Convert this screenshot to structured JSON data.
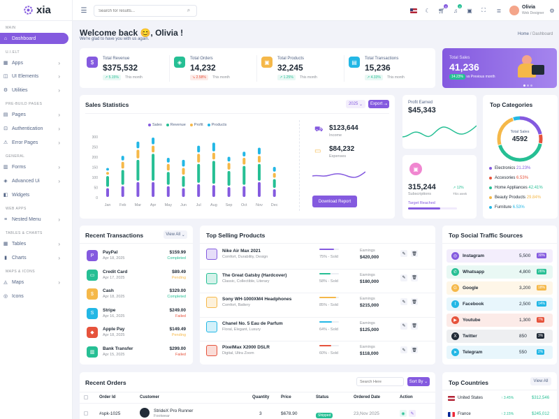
{
  "app": {
    "name": "xia"
  },
  "sidebar": {
    "sections": [
      "MAIN",
      "U.I.ELT",
      "PRE-BUILD PAGES",
      "GENERAL",
      "WEB APPS",
      "TABLES & CHARTS",
      "MAPS & ICONS"
    ],
    "items": [
      {
        "label": "Dashboard",
        "icon": "home-icon"
      },
      {
        "label": "Apps",
        "icon": "grid-icon"
      },
      {
        "label": "UI Elements",
        "icon": "layers-icon"
      },
      {
        "label": "Utilities",
        "icon": "tool-icon"
      },
      {
        "label": "Pages",
        "icon": "page-icon"
      },
      {
        "label": "Authentication",
        "icon": "lock-icon"
      },
      {
        "label": "Error Pages",
        "icon": "error-icon"
      },
      {
        "label": "Forms",
        "icon": "form-icon"
      },
      {
        "label": "Advanced Ui",
        "icon": "advanced-icon"
      },
      {
        "label": "Widgets",
        "icon": "widget-icon"
      },
      {
        "label": "Nested Menu",
        "icon": "nested-icon"
      },
      {
        "label": "Tables",
        "icon": "table-icon"
      },
      {
        "label": "Charts",
        "icon": "chart-icon"
      },
      {
        "label": "Maps",
        "icon": "map-icon"
      },
      {
        "label": "Icons",
        "icon": "icons-icon"
      }
    ]
  },
  "header": {
    "search_placeholder": "Search for results...",
    "user_name": "Olivia",
    "user_role": "Web Designer",
    "cart_badge": "4",
    "notif_badge": "4"
  },
  "welcome": {
    "title": "Welcome back 😊, Olivia !",
    "subtitle": "We're glad to have you with us again.",
    "crumb_home": "Home",
    "crumb_sep": "/",
    "crumb_current": "Dashboard"
  },
  "stats": [
    {
      "label": "Total Revenue",
      "value": "$375,532",
      "change": "5.15%",
      "period": "This month",
      "trend": "up",
      "color": "#845adf"
    },
    {
      "label": "Total Orders",
      "value": "14,232",
      "change": "2.58%",
      "period": "This month",
      "trend": "down",
      "color": "#26bf94"
    },
    {
      "label": "Total Products",
      "value": "32,245",
      "change": "1.25%",
      "period": "This month",
      "trend": "up",
      "color": "#f5b849"
    },
    {
      "label": "Total Transactions",
      "value": "15,236",
      "change": "4.33%",
      "period": "This month",
      "trend": "up",
      "color": "#23b7e5"
    }
  ],
  "total_sales": {
    "label": "Total Sales",
    "value": "41,236",
    "change": "14.23%",
    "note": "vs Previous month"
  },
  "sales_stats": {
    "title": "Sales Statistics",
    "year": "2025",
    "export": "Export",
    "income_value": "$123,644",
    "income_label": "Income",
    "expense_value": "$84,232",
    "expense_label": "Expenses",
    "download": "Download Report"
  },
  "chart_data": {
    "type": "bar",
    "categories": [
      "Jan",
      "Feb",
      "Mar",
      "Apr",
      "May",
      "Jun",
      "Jul",
      "Aug",
      "Sep",
      "Oct",
      "Nov",
      "Dec"
    ],
    "yticks": [
      "300",
      "250",
      "200",
      "150",
      "100",
      "50",
      "0"
    ],
    "ylim": [
      0,
      300
    ],
    "legend": [
      "Sales",
      "Revenue",
      "Profit",
      "Products"
    ],
    "colors": [
      "#845adf",
      "#26bf94",
      "#f5b849",
      "#23b7e5"
    ],
    "series": [
      {
        "name": "Sales",
        "values": [
          50,
          60,
          80,
          80,
          60,
          50,
          70,
          65,
          55,
          60,
          80,
          45
        ]
      },
      {
        "name": "Revenue",
        "values": [
          60,
          80,
          110,
          140,
          70,
          60,
          100,
          120,
          80,
          100,
          90,
          50
        ]
      },
      {
        "name": "Profit",
        "values": [
          20,
          40,
          50,
          40,
          40,
          40,
          50,
          40,
          40,
          40,
          40,
          30
        ]
      },
      {
        "name": "Products",
        "values": [
          20,
          30,
          40,
          40,
          30,
          40,
          40,
          50,
          30,
          30,
          40,
          30
        ]
      }
    ]
  },
  "profit": {
    "label": "Profit Earned",
    "value": "$45,343"
  },
  "subs": {
    "value": "315,244",
    "label": "Subscriptions",
    "change": "12%",
    "period": "This week",
    "target": "Target Reached"
  },
  "categories": {
    "title": "Top Categories",
    "center_label": "Total Sales",
    "center_value": "4592",
    "items": [
      {
        "name": "Electronics",
        "pct": "21.23%",
        "color": "#845adf"
      },
      {
        "name": "Accesories",
        "pct": "6.53%",
        "color": "#e6533c"
      },
      {
        "name": "Home Appliances",
        "pct": "42.41%",
        "color": "#26bf94"
      },
      {
        "name": "Beauty Products",
        "pct": "29.84%",
        "color": "#f5b849"
      },
      {
        "name": "Furniture",
        "pct": "6.53%",
        "color": "#23b7e5"
      }
    ]
  },
  "transactions": {
    "title": "Recent Transactions",
    "view_all": "View All",
    "items": [
      {
        "name": "PayPal",
        "date": "Apr 18, 2025",
        "amount": "$159.99",
        "status": "Completed",
        "color": "#845adf"
      },
      {
        "name": "Credit Card",
        "date": "Apr 17, 2025",
        "amount": "$89.49",
        "status": "Pending",
        "color": "#26bf94"
      },
      {
        "name": "Cash",
        "date": "Apr 18, 2025",
        "amount": "$329.00",
        "status": "Completed",
        "color": "#f5b849"
      },
      {
        "name": "Stripe",
        "date": "Apr 16, 2025",
        "amount": "$249.00",
        "status": "Failed",
        "color": "#23b7e5"
      },
      {
        "name": "Apple Pay",
        "date": "Apr 18, 2025",
        "amount": "$149.49",
        "status": "Pending",
        "color": "#e6533c"
      },
      {
        "name": "Bank Transfer",
        "date": "Apr 15, 2025",
        "amount": "$299.00",
        "status": "Failed",
        "color": "#26bf94"
      }
    ]
  },
  "products": {
    "title": "Top Selling Products",
    "items": [
      {
        "name": "Nike Air Max 2021",
        "tags": "Comfort, Durability, Design",
        "pct": "75% - Sold",
        "fill": 0.75,
        "earn_label": "Earnings",
        "earn": "$420,000",
        "color": "#845adf"
      },
      {
        "name": "The Great Gatsby (Hardcover)",
        "tags": "Classic, Collectible, Literary",
        "pct": "58% - Sold",
        "fill": 0.58,
        "earn_label": "Earnings",
        "earn": "$180,000",
        "color": "#26bf94"
      },
      {
        "name": "Sony WH-1000XM4 Headphones",
        "tags": "Comfort, Battery",
        "pct": "85% - Sold",
        "fill": 0.85,
        "earn_label": "Earnings",
        "earn": "$215,000",
        "color": "#f5b849"
      },
      {
        "name": "Chanel No. 5 Eau de Parfum",
        "tags": "Floral, Elegant, Luxury",
        "pct": "64% - Sold",
        "fill": 0.64,
        "earn_label": "Earnings",
        "earn": "$125,000",
        "color": "#23b7e5"
      },
      {
        "name": "PixelMax X2000 DSLR",
        "tags": "Digital, Ultra Zoom",
        "pct": "60% - Sold",
        "fill": 0.6,
        "earn_label": "Earnings",
        "earn": "$118,000",
        "color": "#e6533c"
      }
    ]
  },
  "social": {
    "title": "Top Social Traffic Sources",
    "items": [
      {
        "name": "Instagram",
        "value": "5,500",
        "pct": "30%",
        "color": "#845adf",
        "bg": "#f3eefc"
      },
      {
        "name": "Whatsapp",
        "value": "4,800",
        "pct": "26%",
        "color": "#26bf94",
        "bg": "#e9f8f4"
      },
      {
        "name": "Google",
        "value": "3,200",
        "pct": "18%",
        "color": "#f5b849",
        "bg": "#fef6e8"
      },
      {
        "name": "Facebook",
        "value": "2,500",
        "pct": "14%",
        "color": "#23b7e5",
        "bg": "#e8f6fc"
      },
      {
        "name": "Youtube",
        "value": "1,300",
        "pct": "7%",
        "color": "#e6533c",
        "bg": "#fcebe8"
      },
      {
        "name": "Twitter",
        "value": "850",
        "pct": "3%",
        "color": "#212b37",
        "bg": "#eeeff1"
      },
      {
        "name": "Telegram",
        "value": "550",
        "pct": "2%",
        "color": "#23b7e5",
        "bg": "#e8f6fc"
      }
    ]
  },
  "orders": {
    "title": "Recent Orders",
    "search": "Search Here",
    "sort": "Sort By",
    "cols": [
      "Order Id",
      "Customer",
      "Quantity",
      "Price",
      "Status",
      "Ordered Date",
      "Action"
    ],
    "row": {
      "id": "#spk-1025",
      "product": "StrideX Pro Runner",
      "cat": "Footwear",
      "qty": "3",
      "price": "$678.90",
      "status": "Shipped",
      "date": "23,Nov 2025"
    }
  },
  "countries": {
    "title": "Top Countries",
    "view_all": "View All",
    "items": [
      {
        "name": "United States",
        "change": "3.45%",
        "value": "$312,546"
      },
      {
        "name": "France",
        "change": "2.15%",
        "value": "$245,012"
      }
    ]
  }
}
